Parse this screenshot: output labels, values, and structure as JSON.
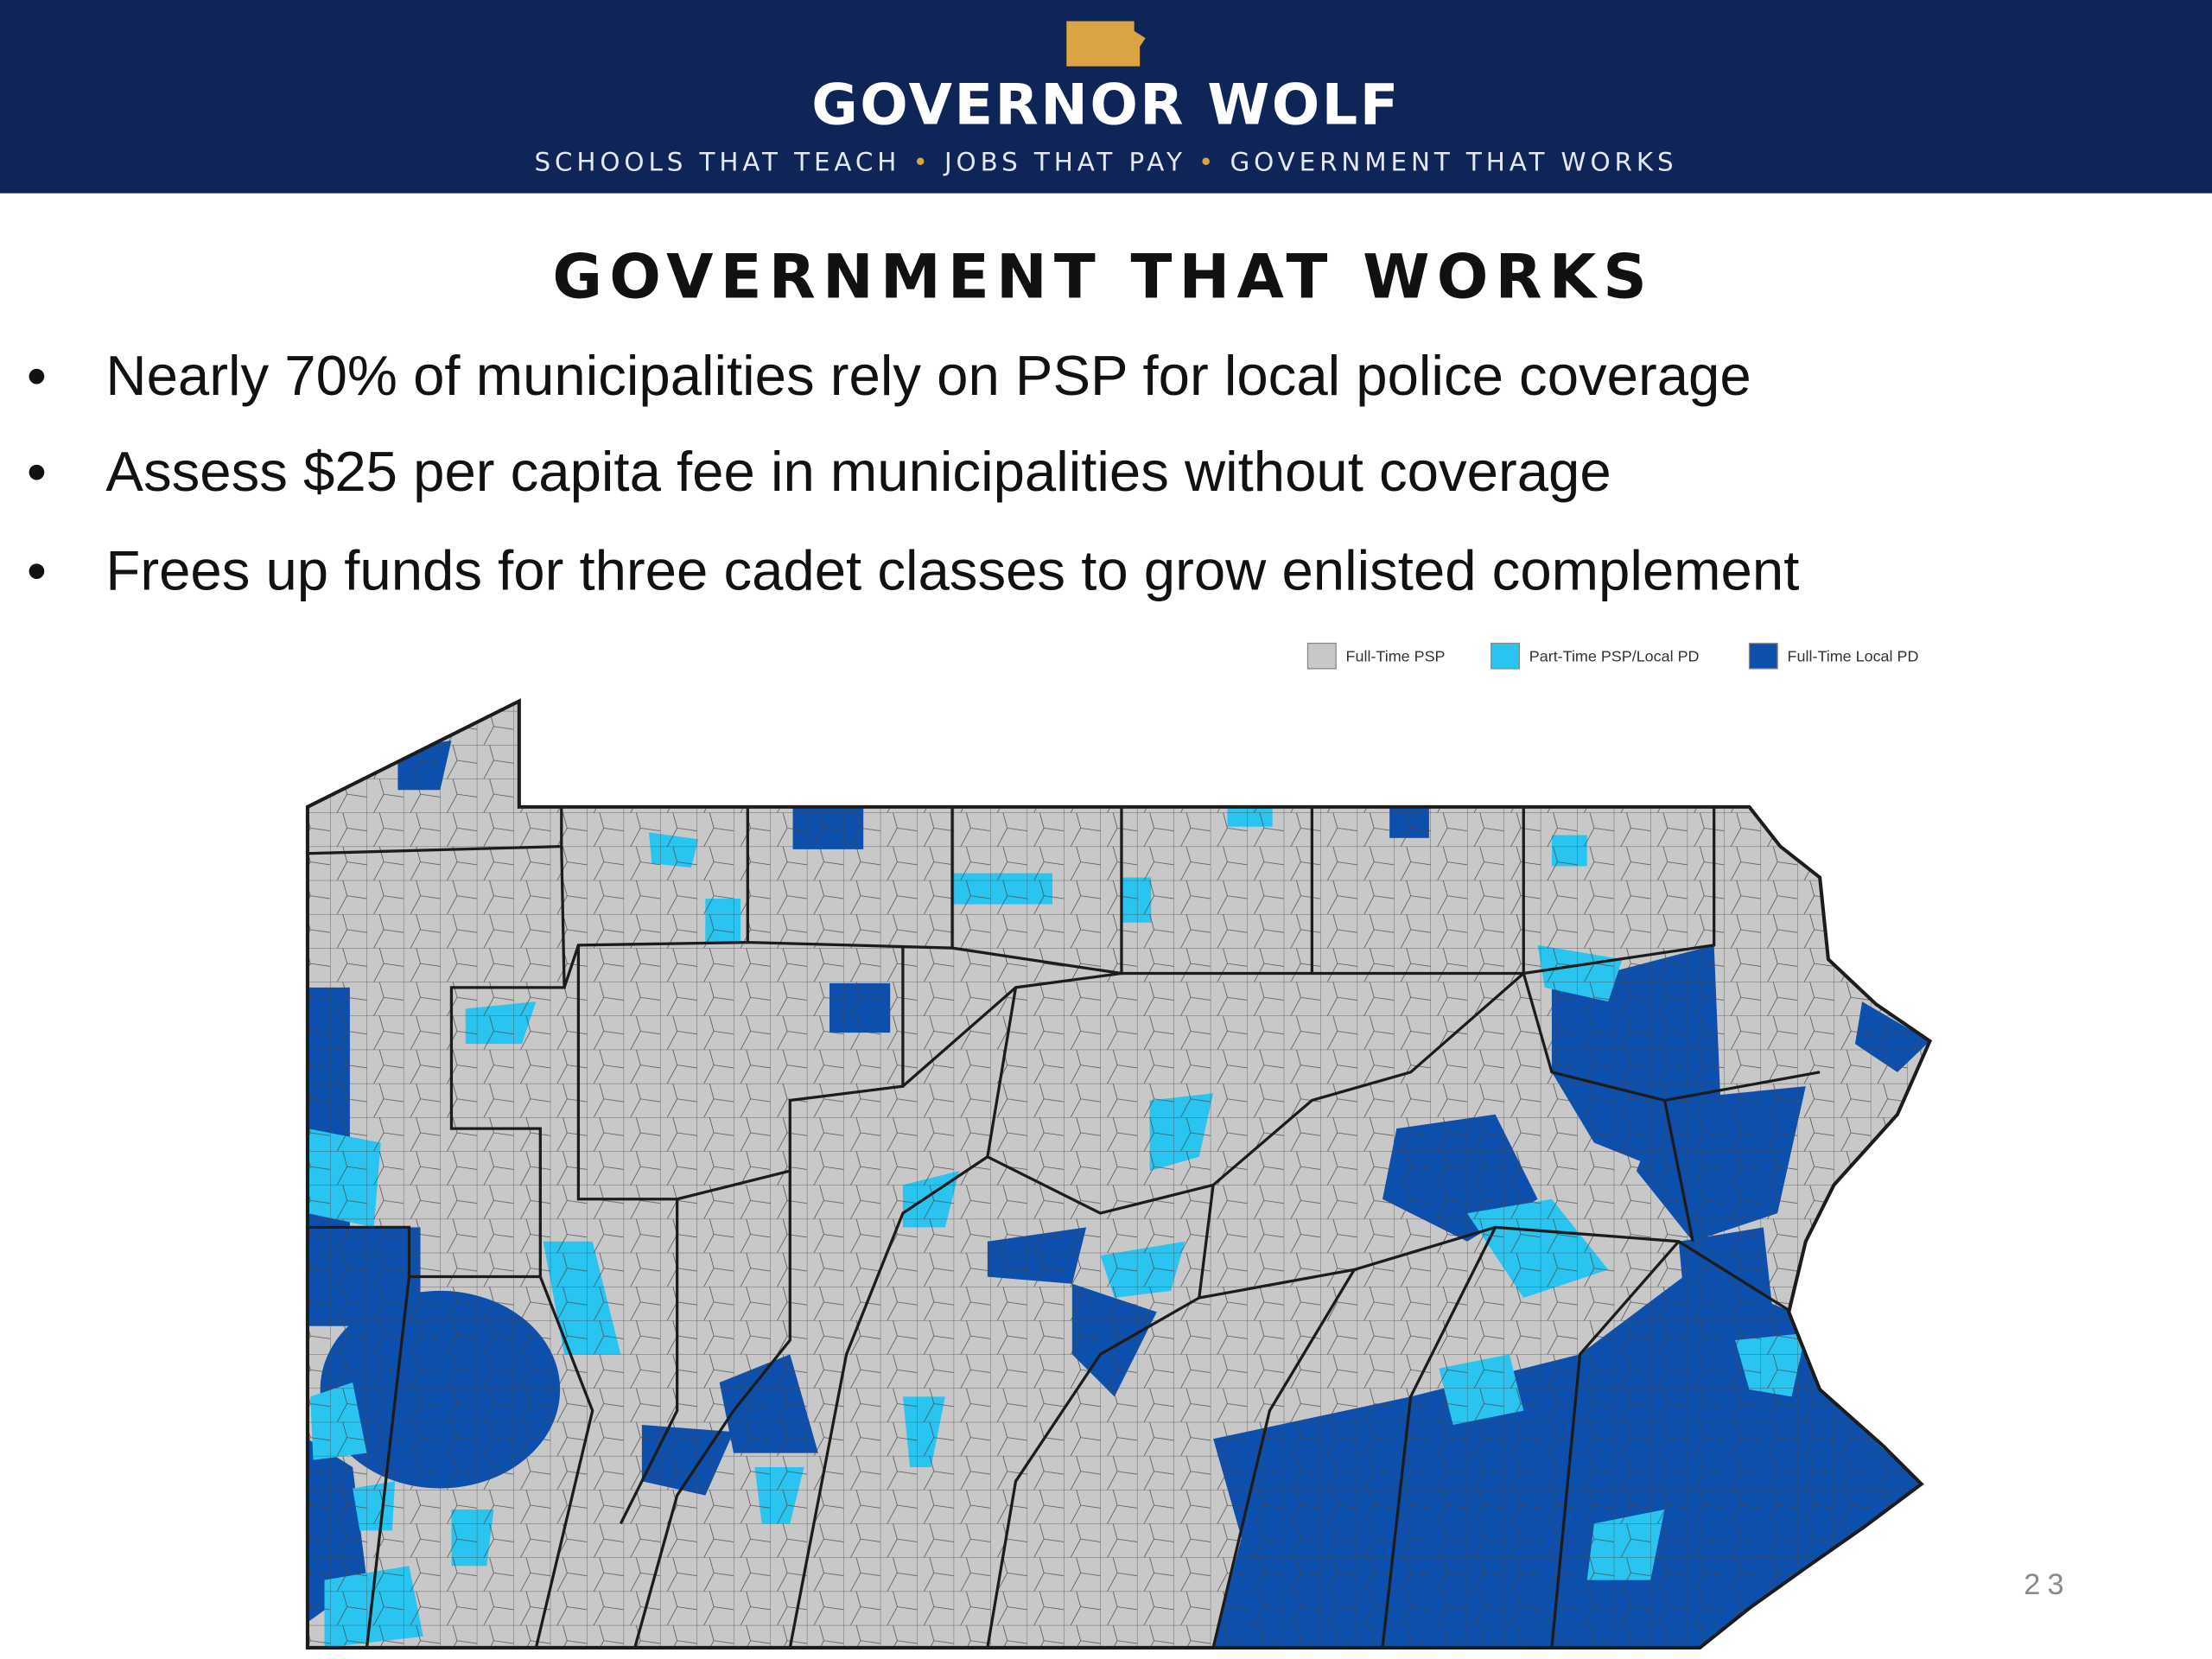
{
  "header": {
    "title": "GOVERNOR WOLF",
    "tagline": [
      "SCHOOLS THAT TEACH",
      "JOBS THAT PAY",
      "GOVERNMENT THAT WORKS"
    ]
  },
  "slide": {
    "title": "GOVERNMENT THAT WORKS",
    "bullets": [
      "Nearly 70% of municipalities rely on PSP for local police coverage",
      "Assess $25 per capita fee in municipalities without coverage",
      "Frees up funds for three cadet classes to grow enlisted complement"
    ],
    "page_number": "23"
  },
  "legend": [
    {
      "label": "Full-Time PSP",
      "color": "#c8c8c8"
    },
    {
      "label": "Part-Time PSP/Local PD",
      "color": "#29c4f0"
    },
    {
      "label": "Full-Time Local PD",
      "color": "#0d4fad"
    }
  ]
}
